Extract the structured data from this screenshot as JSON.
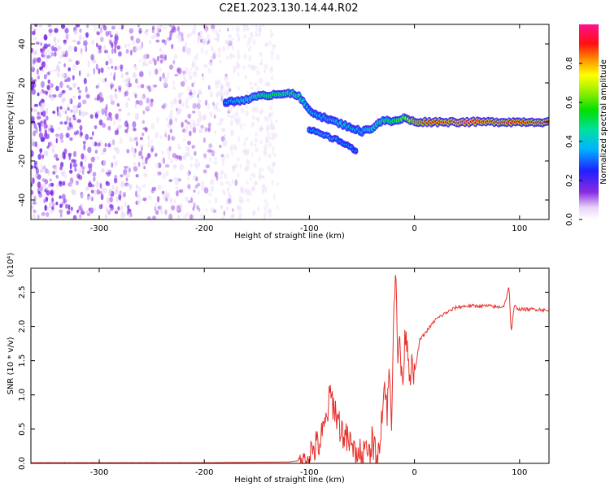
{
  "title": "C2E1.2023.130.14.44.R02",
  "colors": {
    "spectrum_dots": "#7a1fe6",
    "snr_line": "#e8302a",
    "background": "#ffffff"
  },
  "chart_data": [
    {
      "type": "heatmap",
      "xlabel": "Height of straight line (km)",
      "ylabel": "Frequency (Hz)",
      "xlim": [
        -365,
        128
      ],
      "ylim": [
        -50,
        50
      ],
      "xticks": [
        -300,
        -200,
        -100,
        0,
        100
      ],
      "yticks": [
        -40,
        -20,
        0,
        20,
        40
      ],
      "grid": false,
      "colorbar": {
        "label": "Normalized spectral amplitude",
        "range": [
          0.0,
          1.0
        ],
        "ticks": [
          0.0,
          0.2,
          0.4,
          0.6,
          0.8
        ],
        "colormap": "rainbow"
      },
      "noise_region": {
        "x": [
          -365,
          -130
        ],
        "y": [
          -50,
          50
        ],
        "amplitude": 0.25
      },
      "ridge": {
        "x": [
          -180,
          -165,
          -150,
          -135,
          -120,
          -110,
          -100,
          -90,
          -80,
          -70,
          -60,
          -50,
          -40,
          -30,
          -20,
          -10,
          0,
          20,
          50,
          88,
          128
        ],
        "y": [
          10,
          11,
          13,
          14,
          15,
          13,
          6,
          3,
          1,
          -1,
          -3,
          -5,
          -3,
          1,
          0,
          2,
          0,
          0,
          0,
          0,
          0
        ],
        "amplitude": [
          0.35,
          0.45,
          0.5,
          0.55,
          0.55,
          0.5,
          0.4,
          0.4,
          0.4,
          0.45,
          0.4,
          0.4,
          0.5,
          0.5,
          0.55,
          0.65,
          0.85,
          0.9,
          0.95,
          0.9,
          0.9
        ]
      },
      "branch": {
        "x": [
          -100,
          -90,
          -80,
          -70,
          -60,
          -55
        ],
        "y": [
          -4,
          -6,
          -8,
          -10,
          -13,
          -16
        ],
        "amplitude": [
          0.35,
          0.4,
          0.4,
          0.35,
          0.35,
          0.3
        ]
      }
    },
    {
      "type": "line",
      "xlabel": "Height of straight line (km)",
      "ylabel": "SNR (10 * v/v)",
      "y_multiplier": "(x10⁴)",
      "xlim": [
        -365,
        128
      ],
      "ylim": [
        0,
        2.85
      ],
      "xticks": [
        -300,
        -200,
        -100,
        0,
        100
      ],
      "yticks": [
        0.0,
        0.5,
        1.0,
        1.5,
        2.0,
        2.5
      ],
      "grid": false,
      "series": [
        {
          "x": [
            -365,
            -300,
            -200,
            -120,
            -105,
            -100,
            -90,
            -85,
            -80,
            -75,
            -70,
            -65,
            -60,
            -55,
            -50,
            -45,
            -40,
            -35,
            -30,
            -28,
            -26,
            -24,
            -22,
            -20,
            -18,
            -16,
            -14,
            -12,
            -10,
            -8,
            -5,
            0,
            5,
            10,
            20,
            30,
            40,
            50,
            60,
            70,
            80,
            85,
            88,
            90,
            92,
            95,
            100,
            110,
            120,
            128
          ],
          "y": [
            0.01,
            0.01,
            0.01,
            0.02,
            0.05,
            0.15,
            0.3,
            0.55,
            1.0,
            0.75,
            0.5,
            0.35,
            0.25,
            0.2,
            0.15,
            0.2,
            0.3,
            0.1,
            0.9,
            1.2,
            0.7,
            1.4,
            0.5,
            2.2,
            2.85,
            1.5,
            1.9,
            1.1,
            1.6,
            2.0,
            1.4,
            1.3,
            1.8,
            1.9,
            2.1,
            2.2,
            2.28,
            2.3,
            2.3,
            2.3,
            2.28,
            2.3,
            2.45,
            2.6,
            1.9,
            2.3,
            2.25,
            2.25,
            2.25,
            2.22
          ]
        }
      ]
    }
  ]
}
